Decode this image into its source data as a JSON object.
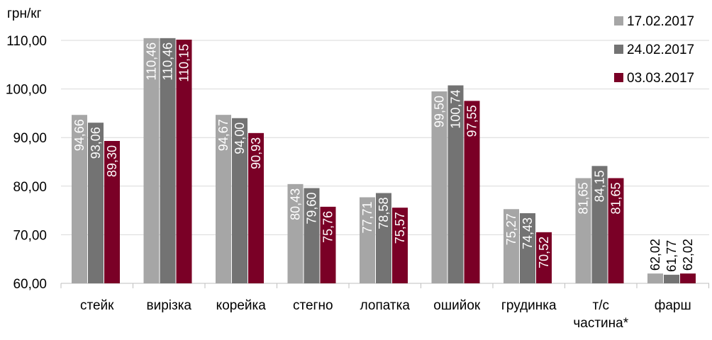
{
  "chart_data": {
    "type": "bar",
    "ylabel": "грн/кг",
    "ylim": [
      60,
      110
    ],
    "yticks": [
      "60,00",
      "70,00",
      "80,00",
      "90,00",
      "100,00",
      "110,00"
    ],
    "grid": true,
    "legend_position": "top-right",
    "categories": [
      [
        "стейк"
      ],
      [
        "вирізка"
      ],
      [
        "корейка"
      ],
      [
        "стегно"
      ],
      [
        "лопатка"
      ],
      [
        "ошийок"
      ],
      [
        "грудинка"
      ],
      [
        "т/с",
        "частина*"
      ],
      [
        "фарш"
      ]
    ],
    "series": [
      {
        "name": "17.02.2017",
        "color": "#a6a6a6",
        "values": [
          94.66,
          110.46,
          94.67,
          80.43,
          77.71,
          99.5,
          75.27,
          81.65,
          62.02
        ],
        "labels": [
          "94,66",
          "110,46",
          "94,67",
          "80,43",
          "77,71",
          "99,50",
          "75,27",
          "81,65",
          "62,02"
        ]
      },
      {
        "name": "24.02.2017",
        "color": "#737373",
        "values": [
          93.06,
          110.46,
          94.0,
          79.6,
          78.58,
          100.74,
          74.43,
          84.15,
          61.77
        ],
        "labels": [
          "93,06",
          "110,46",
          "94,00",
          "79,60",
          "78,58",
          "100,74",
          "74,43",
          "84,15",
          "61,77"
        ]
      },
      {
        "name": "03.03.2017",
        "color": "#7a0026",
        "values": [
          89.3,
          110.15,
          90.93,
          75.76,
          75.57,
          97.55,
          70.52,
          81.65,
          62.02
        ],
        "labels": [
          "89,30",
          "110,15",
          "90,93",
          "75,76",
          "75,57",
          "97,55",
          "70,52",
          "81,65",
          "62,02"
        ]
      }
    ]
  }
}
